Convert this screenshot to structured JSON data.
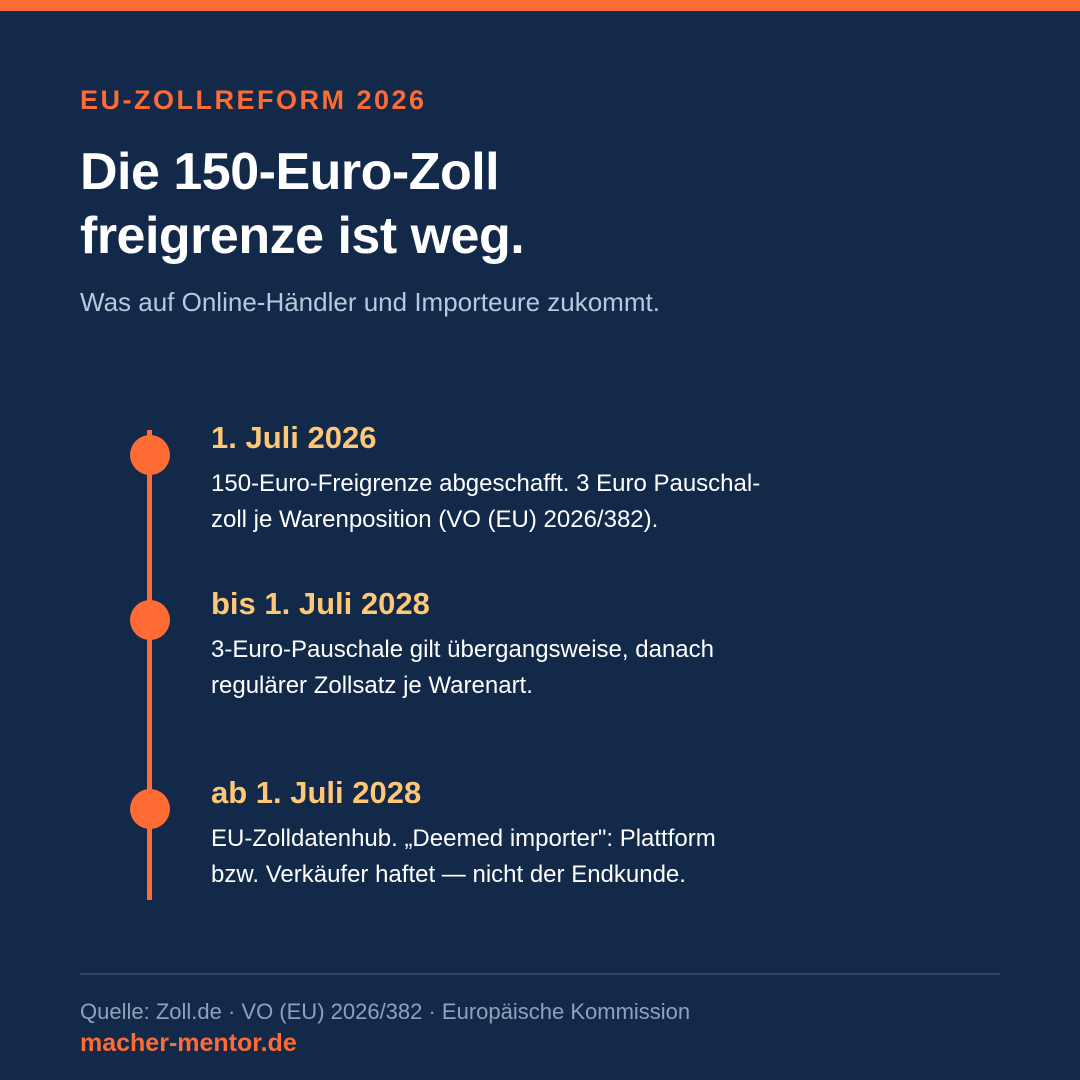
{
  "colors": {
    "background": "#12294a",
    "accent": "#ff6b35",
    "date": "#ffc876",
    "subtitle": "#b9c8de",
    "muted": "#8fa2bd"
  },
  "header": {
    "kicker": "EU-ZOLLREFORM 2026",
    "title_lines": [
      "Die 150-Euro-Zoll",
      "freigrenze ist weg."
    ],
    "subtitle": "Was auf Online-Händler und Importeure zukommt."
  },
  "timeline": [
    {
      "date": "1. Juli 2026",
      "text_lines": [
        "150-Euro-Freigrenze abgeschafft. 3 Euro Pauschal-",
        "zoll je Warenposition (VO (EU) 2026/382)."
      ]
    },
    {
      "date": "bis 1. Juli 2028",
      "text_lines": [
        "3-Euro-Pauschale gilt übergangsweise, danach",
        "regulärer Zollsatz je Warenart."
      ]
    },
    {
      "date": "ab 1. Juli 2028",
      "text_lines": [
        "EU-Zolldatenhub. „Deemed importer\": Plattform",
        "bzw. Verkäufer haftet — nicht der Endkunde."
      ]
    }
  ],
  "footer": {
    "source": "Quelle: Zoll.de · VO (EU) 2026/382 · Europäische Kommission",
    "brand": "macher-mentor.de"
  }
}
